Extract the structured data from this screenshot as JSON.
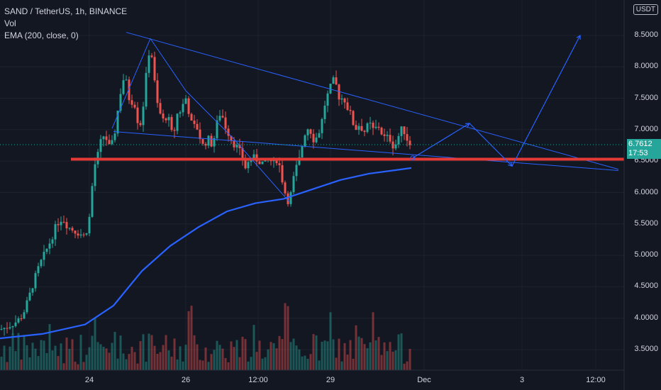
{
  "legend": {
    "symbol": "SAND / TetherUS, 1h, BINANCE",
    "vol": "Vol",
    "ema": "EMA (200, close, 0)"
  },
  "currency_button": "USDT",
  "last_price": {
    "value": "6.7612",
    "countdown": "17:53"
  },
  "colors": {
    "background": "#131722",
    "up": "#26a69a",
    "down": "#ef5350",
    "ema": "#2962ff",
    "trendline": "#2962ff",
    "support": "#e53935",
    "text": "#d1d4dc"
  },
  "chart_data": {
    "type": "candlestick",
    "title": "SAND / TetherUS, 1h, BINANCE",
    "y_axis": {
      "ticks": [
        "3.5000",
        "4.0000",
        "4.5000",
        "5.0000",
        "5.5000",
        "6.0000",
        "6.5000",
        "7.0000",
        "7.5000",
        "8.0000",
        "8.5000"
      ],
      "range": [
        3.2,
        8.9
      ]
    },
    "x_axis": {
      "ticks": [
        "24",
        "26",
        "12:00",
        "29",
        "Dec",
        "3",
        "12:00"
      ]
    },
    "close_path": [
      [
        0,
        3.82
      ],
      [
        8,
        3.85
      ],
      [
        16,
        3.9
      ],
      [
        24,
        3.95
      ],
      [
        32,
        4.05
      ],
      [
        40,
        4.3
      ],
      [
        48,
        4.6
      ],
      [
        56,
        4.85
      ],
      [
        64,
        5.05
      ],
      [
        72,
        5.25
      ],
      [
        80,
        5.5
      ],
      [
        88,
        5.6
      ],
      [
        96,
        5.45
      ],
      [
        104,
        5.4
      ],
      [
        112,
        5.35
      ],
      [
        120,
        5.3
      ],
      [
        126,
        5.6
      ],
      [
        130,
        6.1
      ],
      [
        134,
        6.45
      ],
      [
        138,
        6.6
      ],
      [
        142,
        6.8
      ],
      [
        148,
        6.95
      ],
      [
        152,
        6.75
      ],
      [
        156,
        6.7
      ],
      [
        160,
        6.85
      ],
      [
        164,
        7.1
      ],
      [
        168,
        7.5
      ],
      [
        172,
        7.7
      ],
      [
        176,
        7.9
      ],
      [
        180,
        7.6
      ],
      [
        184,
        7.4
      ],
      [
        188,
        7.5
      ],
      [
        192,
        7.3
      ],
      [
        196,
        7.0
      ],
      [
        200,
        7.2
      ],
      [
        204,
        7.6
      ],
      [
        208,
        8.1
      ],
      [
        212,
        8.35
      ],
      [
        216,
        8.0
      ],
      [
        220,
        7.5
      ],
      [
        224,
        7.3
      ],
      [
        228,
        7.2
      ],
      [
        232,
        7.1
      ],
      [
        236,
        7.3
      ],
      [
        240,
        7.0
      ],
      [
        244,
        6.9
      ],
      [
        248,
        7.1
      ],
      [
        252,
        7.4
      ],
      [
        256,
        7.2
      ],
      [
        260,
        7.6
      ],
      [
        264,
        7.4
      ],
      [
        268,
        7.2
      ],
      [
        272,
        7.0
      ],
      [
        276,
        7.1
      ],
      [
        280,
        6.95
      ],
      [
        284,
        6.8
      ],
      [
        288,
        6.7
      ],
      [
        292,
        6.9
      ],
      [
        296,
        6.8
      ],
      [
        300,
        6.75
      ],
      [
        304,
        7.0
      ],
      [
        308,
        7.2
      ],
      [
        312,
        7.3
      ],
      [
        316,
        7.1
      ],
      [
        320,
        7.0
      ],
      [
        324,
        6.9
      ],
      [
        328,
        6.8
      ],
      [
        332,
        6.75
      ],
      [
        336,
        6.7
      ],
      [
        340,
        6.6
      ],
      [
        344,
        6.45
      ],
      [
        348,
        6.35
      ],
      [
        352,
        6.6
      ],
      [
        356,
        6.5
      ],
      [
        360,
        6.6
      ],
      [
        364,
        6.45
      ],
      [
        368,
        6.55
      ],
      [
        372,
        6.4
      ],
      [
        376,
        6.5
      ],
      [
        380,
        6.55
      ],
      [
        384,
        6.45
      ],
      [
        388,
        6.5
      ],
      [
        392,
        6.55
      ],
      [
        396,
        6.3
      ],
      [
        400,
        6.1
      ],
      [
        404,
        5.9
      ],
      [
        408,
        5.85
      ],
      [
        412,
        6.1
      ],
      [
        416,
        6.35
      ],
      [
        420,
        6.45
      ],
      [
        424,
        6.6
      ],
      [
        428,
        6.9
      ],
      [
        432,
        7.0
      ],
      [
        436,
        7.05
      ],
      [
        440,
        6.9
      ],
      [
        444,
        6.8
      ],
      [
        448,
        6.95
      ],
      [
        452,
        7.0
      ],
      [
        456,
        7.3
      ],
      [
        460,
        7.5
      ],
      [
        464,
        7.6
      ],
      [
        468,
        7.75
      ],
      [
        472,
        7.8
      ],
      [
        476,
        7.6
      ],
      [
        480,
        7.45
      ],
      [
        484,
        7.55
      ],
      [
        488,
        7.4
      ],
      [
        492,
        7.3
      ],
      [
        496,
        7.2
      ],
      [
        500,
        7.0
      ],
      [
        504,
        7.05
      ],
      [
        508,
        7.1
      ],
      [
        512,
        6.95
      ],
      [
        516,
        7.0
      ],
      [
        520,
        7.1
      ],
      [
        524,
        7.05
      ],
      [
        528,
        6.95
      ],
      [
        532,
        7.1
      ],
      [
        536,
        7.0
      ],
      [
        540,
        6.9
      ],
      [
        544,
        6.85
      ],
      [
        548,
        6.9
      ],
      [
        552,
        6.8
      ],
      [
        556,
        6.7
      ],
      [
        560,
        6.85
      ],
      [
        564,
        6.95
      ],
      [
        568,
        7.05
      ],
      [
        572,
        6.9
      ],
      [
        576,
        6.8
      ],
      [
        580,
        6.76
      ]
    ],
    "ema_path": [
      [
        0,
        3.68
      ],
      [
        60,
        3.75
      ],
      [
        120,
        3.9
      ],
      [
        160,
        4.2
      ],
      [
        200,
        4.75
      ],
      [
        240,
        5.15
      ],
      [
        280,
        5.45
      ],
      [
        320,
        5.7
      ],
      [
        360,
        5.83
      ],
      [
        400,
        5.9
      ],
      [
        440,
        6.05
      ],
      [
        480,
        6.2
      ],
      [
        520,
        6.3
      ],
      [
        560,
        6.36
      ],
      [
        580,
        6.39
      ]
    ],
    "volume_bars": 145,
    "lines": [
      {
        "name": "descending-trendline",
        "from": [
          178,
          8.55
        ],
        "to": [
          872,
          6.37
        ]
      },
      {
        "name": "lower-wedge-line",
        "from": [
          160,
          6.97
        ],
        "to": [
          872,
          6.35
        ]
      },
      {
        "name": "support-line",
        "from": [
          100,
          6.53
        ],
        "to": [
          880,
          6.53
        ]
      }
    ],
    "projection_path": [
      [
        582,
        6.55
      ],
      [
        662,
        7.1
      ],
      [
        722,
        6.42
      ],
      [
        818,
        8.5
      ]
    ],
    "swing_path": [
      [
        158,
        7.02
      ],
      [
        212,
        8.45
      ],
      [
        262,
        7.62
      ],
      [
        330,
        6.85
      ],
      [
        408,
        5.85
      ]
    ],
    "current_price_line": 6.7612
  }
}
